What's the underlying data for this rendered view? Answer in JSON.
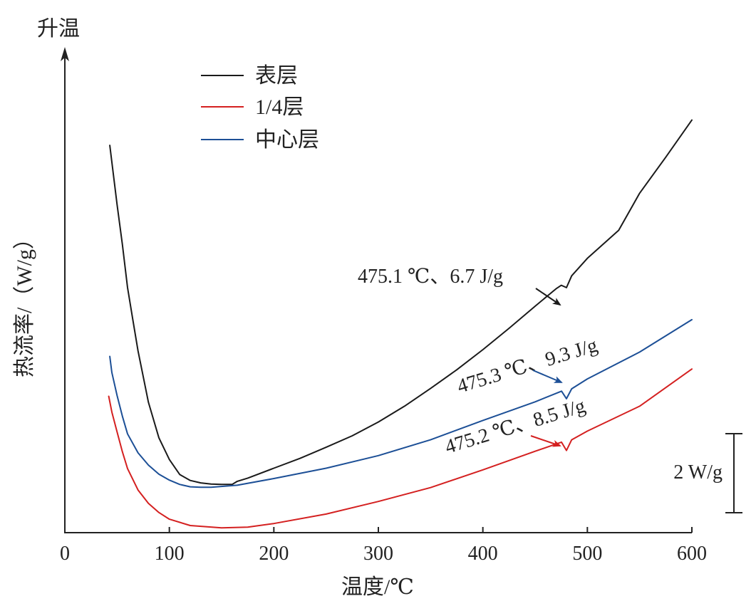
{
  "chart_data": {
    "type": "line",
    "title": "",
    "xlabel": "温度/℃",
    "ylabel": "热流率/（W/g）",
    "y_direction_label": "升温",
    "xlim": [
      0,
      600
    ],
    "xticks": [
      0,
      100,
      200,
      300,
      400,
      500,
      600
    ],
    "y_ticks_shown": false,
    "grid": false,
    "legend_position": "top-left",
    "scale_bar": {
      "label": "2 W/g",
      "value": 2
    },
    "series": [
      {
        "name": "表层",
        "color": "#1a1a1a",
        "x": [
          43,
          50,
          55,
          60,
          65,
          70,
          80,
          90,
          100,
          110,
          120,
          130,
          140,
          150,
          160,
          165,
          175,
          200,
          225,
          250,
          275,
          300,
          325,
          350,
          375,
          400,
          425,
          450,
          470,
          475.1,
          480,
          485,
          500,
          530,
          550,
          575,
          600
        ],
        "y": [
          9.8,
          8.3,
          7.3,
          6.2,
          5.4,
          4.6,
          3.3,
          2.4,
          1.85,
          1.47,
          1.32,
          1.26,
          1.23,
          1.22,
          1.22,
          1.3,
          1.38,
          1.63,
          1.88,
          2.16,
          2.45,
          2.8,
          3.2,
          3.65,
          4.12,
          4.63,
          5.17,
          5.73,
          6.17,
          6.26,
          6.2,
          6.5,
          6.94,
          7.65,
          8.59,
          9.5,
          10.44
        ]
      },
      {
        "name": "1/4层",
        "color": "#d42020",
        "x": [
          42,
          45,
          50,
          55,
          60,
          70,
          80,
          90,
          100,
          120,
          150,
          175,
          200,
          250,
          300,
          350,
          400,
          450,
          475.2,
          480,
          485,
          500,
          550,
          600
        ],
        "y": [
          3.45,
          3.05,
          2.55,
          2.05,
          1.62,
          1.08,
          0.74,
          0.51,
          0.34,
          0.18,
          0.12,
          0.14,
          0.23,
          0.47,
          0.79,
          1.14,
          1.59,
          2.06,
          2.29,
          2.08,
          2.35,
          2.57,
          3.2,
          4.14
        ]
      },
      {
        "name": "中心层",
        "color": "#1c4f96",
        "x": [
          43,
          45,
          50,
          55,
          60,
          70,
          80,
          90,
          100,
          110,
          120,
          130,
          140,
          165,
          200,
          250,
          300,
          350,
          400,
          450,
          475.3,
          480,
          485,
          500,
          550,
          600
        ],
        "y": [
          4.46,
          4.05,
          3.47,
          2.95,
          2.5,
          2.02,
          1.71,
          1.48,
          1.33,
          1.22,
          1.16,
          1.15,
          1.15,
          1.2,
          1.37,
          1.63,
          1.95,
          2.35,
          2.84,
          3.31,
          3.58,
          3.39,
          3.64,
          3.89,
          4.57,
          5.39
        ]
      }
    ],
    "annotations": [
      {
        "series": "表层",
        "text": "475.1 ℃、6.7 J/g",
        "x": 475.1,
        "y": 6.26
      },
      {
        "series": "中心层",
        "text": "475.3 ℃、9.3 J/g",
        "x": 475.3,
        "y": 3.58
      },
      {
        "series": "1/4层",
        "text": "475.2 ℃、8.5 J/g",
        "x": 475.2,
        "y": 2.29
      }
    ]
  }
}
